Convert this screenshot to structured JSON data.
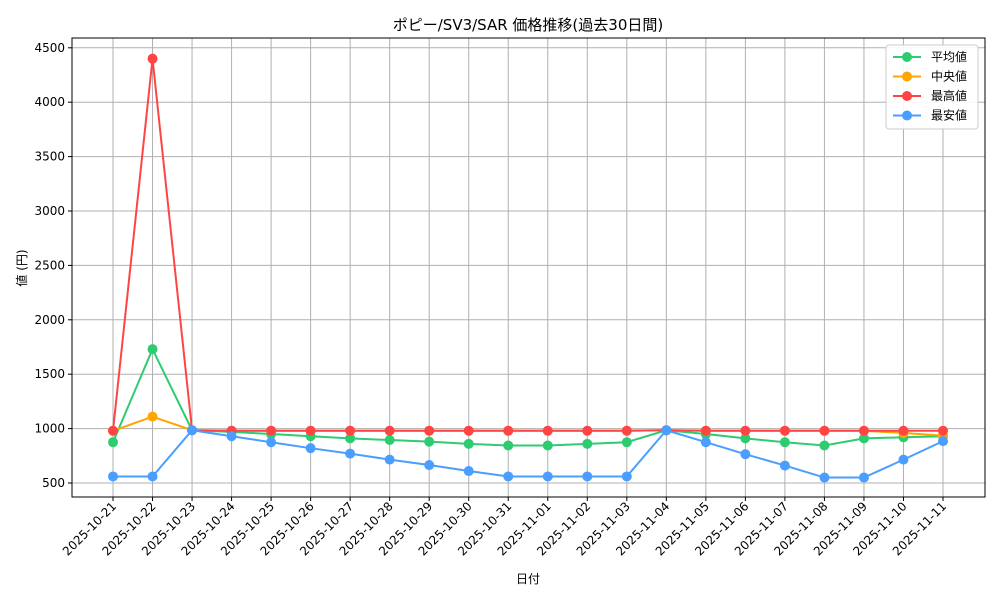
{
  "chart_data": {
    "type": "line",
    "title": "ポピー/SV3/SAR 価格推移(過去30日間)",
    "xlabel": "日付",
    "ylabel": "値 (円)",
    "ylim": [
      350,
      4600
    ],
    "yticks": [
      500,
      1000,
      1500,
      2000,
      2500,
      3000,
      3500,
      4000,
      4500
    ],
    "grid": true,
    "legend": "top-right",
    "categories": [
      "2025-10-21",
      "2025-10-22",
      "2025-10-23",
      "2025-10-24",
      "2025-10-25",
      "2025-10-26",
      "2025-10-27",
      "2025-10-28",
      "2025-10-29",
      "2025-10-30",
      "2025-10-31",
      "2025-11-01",
      "2025-11-02",
      "2025-11-03",
      "2025-11-04",
      "2025-11-05",
      "2025-11-06",
      "2025-11-07",
      "2025-11-08",
      "2025-11-09",
      "2025-11-10",
      "2025-11-11"
    ],
    "series": [
      {
        "name": "平均値",
        "color": "#2ecc71",
        "values": [
          875,
          1730,
          985,
          970,
          950,
          930,
          910,
          895,
          880,
          860,
          845,
          845,
          860,
          875,
          985,
          950,
          910,
          875,
          845,
          910,
          920,
          930
        ]
      },
      {
        "name": "中央値",
        "color": "#ffa500",
        "values": [
          980,
          1110,
          985,
          980,
          980,
          980,
          980,
          980,
          980,
          980,
          980,
          980,
          980,
          980,
          985,
          980,
          980,
          980,
          980,
          980,
          960,
          935
        ]
      },
      {
        "name": "最高値",
        "color": "#ff4444",
        "values": [
          980,
          4400,
          985,
          980,
          980,
          980,
          980,
          980,
          980,
          980,
          980,
          980,
          980,
          980,
          985,
          980,
          980,
          980,
          980,
          980,
          980,
          980
        ]
      },
      {
        "name": "最安値",
        "color": "#4a9eff",
        "values": [
          560,
          560,
          985,
          930,
          875,
          820,
          770,
          715,
          665,
          610,
          560,
          560,
          560,
          560,
          985,
          875,
          765,
          660,
          550,
          550,
          715,
          885
        ]
      }
    ]
  }
}
